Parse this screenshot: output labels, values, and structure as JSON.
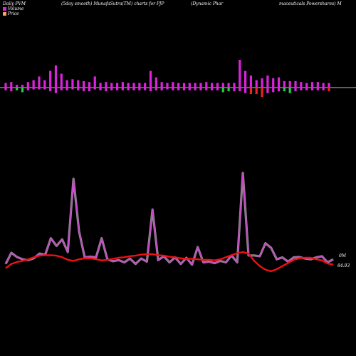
{
  "header": {
    "left": "Daily PVM",
    "center1": "(5day smooth) MunafaSutra(TM) charts for PJP",
    "center2": "(Dynamic Phar",
    "right": "maceuticals Powershares) M"
  },
  "colors": {
    "background": "#000000",
    "volume_up": "#dd22dd",
    "volume_down_green": "#22cc44",
    "volume_down_red": "#ee2222",
    "volume_line": "#cc44cc",
    "price_line": "#ee1111",
    "axis": "#ffffff"
  },
  "chart_data": [
    {
      "type": "bar",
      "title": "",
      "legend": [],
      "direction_colors": [
        "up",
        "green",
        "red"
      ],
      "values": [
        [
          5,
          -3,
          "up"
        ],
        [
          6,
          -4,
          "up"
        ],
        [
          3,
          -3,
          "green"
        ],
        [
          3,
          -5,
          "green"
        ],
        [
          6,
          -3,
          "up"
        ],
        [
          8,
          -2,
          "up"
        ],
        [
          12,
          -2,
          "up"
        ],
        [
          8,
          -2,
          "up"
        ],
        [
          18,
          -4,
          "up"
        ],
        [
          24,
          -6,
          "up"
        ],
        [
          15,
          -3,
          "up"
        ],
        [
          8,
          -3,
          "up"
        ],
        [
          9,
          -2,
          "up"
        ],
        [
          8,
          -3,
          "up"
        ],
        [
          7,
          -4,
          "up"
        ],
        [
          6,
          -4,
          "up"
        ],
        [
          12,
          -2,
          "up"
        ],
        [
          5,
          -3,
          "up"
        ],
        [
          6,
          -4,
          "up"
        ],
        [
          5,
          -3,
          "up"
        ],
        [
          5,
          -3,
          "up"
        ],
        [
          6,
          -3,
          "up"
        ],
        [
          5,
          -3,
          "up"
        ],
        [
          5,
          -3,
          "up"
        ],
        [
          5,
          -3,
          "up"
        ],
        [
          5,
          -3,
          "up"
        ],
        [
          18,
          -4,
          "up"
        ],
        [
          11,
          -3,
          "up"
        ],
        [
          6,
          -3,
          "up"
        ],
        [
          5,
          -2,
          "up"
        ],
        [
          6,
          -3,
          "up"
        ],
        [
          5,
          -3,
          "up"
        ],
        [
          5,
          -3,
          "up"
        ],
        [
          5,
          -3,
          "up"
        ],
        [
          5,
          -3,
          "up"
        ],
        [
          5,
          -3,
          "up"
        ],
        [
          6,
          -3,
          "up"
        ],
        [
          5,
          -3,
          "up"
        ],
        [
          5,
          -3,
          "up"
        ],
        [
          5,
          -5,
          "green"
        ],
        [
          5,
          -4,
          "green"
        ],
        [
          5,
          -4,
          "up"
        ],
        [
          30,
          -4,
          "up"
        ],
        [
          18,
          -6,
          "up"
        ],
        [
          13,
          -7,
          "red"
        ],
        [
          8,
          -7,
          "red"
        ],
        [
          10,
          -10,
          "red"
        ],
        [
          13,
          -6,
          "up"
        ],
        [
          10,
          -5,
          "up"
        ],
        [
          11,
          -4,
          "up"
        ],
        [
          7,
          -4,
          "green"
        ],
        [
          7,
          -6,
          "green"
        ],
        [
          7,
          -4,
          "up"
        ],
        [
          6,
          -3,
          "up"
        ],
        [
          5,
          -3,
          "up"
        ],
        [
          6,
          -3,
          "up"
        ],
        [
          6,
          -3,
          "up"
        ],
        [
          5,
          -3,
          "up"
        ],
        [
          5,
          -4,
          "red"
        ]
      ],
      "ylim": [
        -12,
        30
      ]
    },
    {
      "type": "line",
      "title": "",
      "series": [
        {
          "name": "Volume",
          "values": [
            8,
            37,
            26,
            20,
            18,
            23,
            35,
            32,
            75,
            55,
            72,
            39,
            230,
            92,
            25,
            27,
            25,
            75,
            20,
            15,
            18,
            12,
            22,
            8,
            22,
            14,
            150,
            18,
            28,
            12,
            25,
            8,
            24,
            6,
            52,
            12,
            14,
            10,
            16,
            12,
            30,
            12,
            245,
            30,
            30,
            28,
            62,
            50,
            20,
            25,
            14,
            25,
            26,
            22,
            20,
            25,
            28,
            12,
            20
          ]
        },
        {
          "name": "Price",
          "values": [
            83.2,
            84.0,
            84.4,
            84.6,
            84.9,
            85.3,
            85.6,
            85.7,
            85.7,
            85.6,
            85.3,
            84.8,
            84.6,
            84.9,
            85.1,
            85.1,
            84.9,
            84.7,
            84.8,
            85.0,
            85.2,
            85.3,
            85.5,
            85.6,
            85.8,
            85.9,
            85.9,
            85.7,
            85.6,
            85.4,
            85.3,
            85.1,
            85.0,
            85.0,
            84.9,
            84.8,
            84.8,
            84.7,
            84.9,
            85.3,
            85.7,
            86.1,
            86.3,
            86.0,
            84.6,
            83.6,
            82.9,
            82.6,
            83.0,
            83.6,
            84.2,
            84.8,
            85.1,
            85.2,
            85.2,
            84.9,
            84.7,
            84.1,
            83.9
          ]
        }
      ],
      "annotations": [
        "0M",
        "84.93"
      ]
    }
  ]
}
